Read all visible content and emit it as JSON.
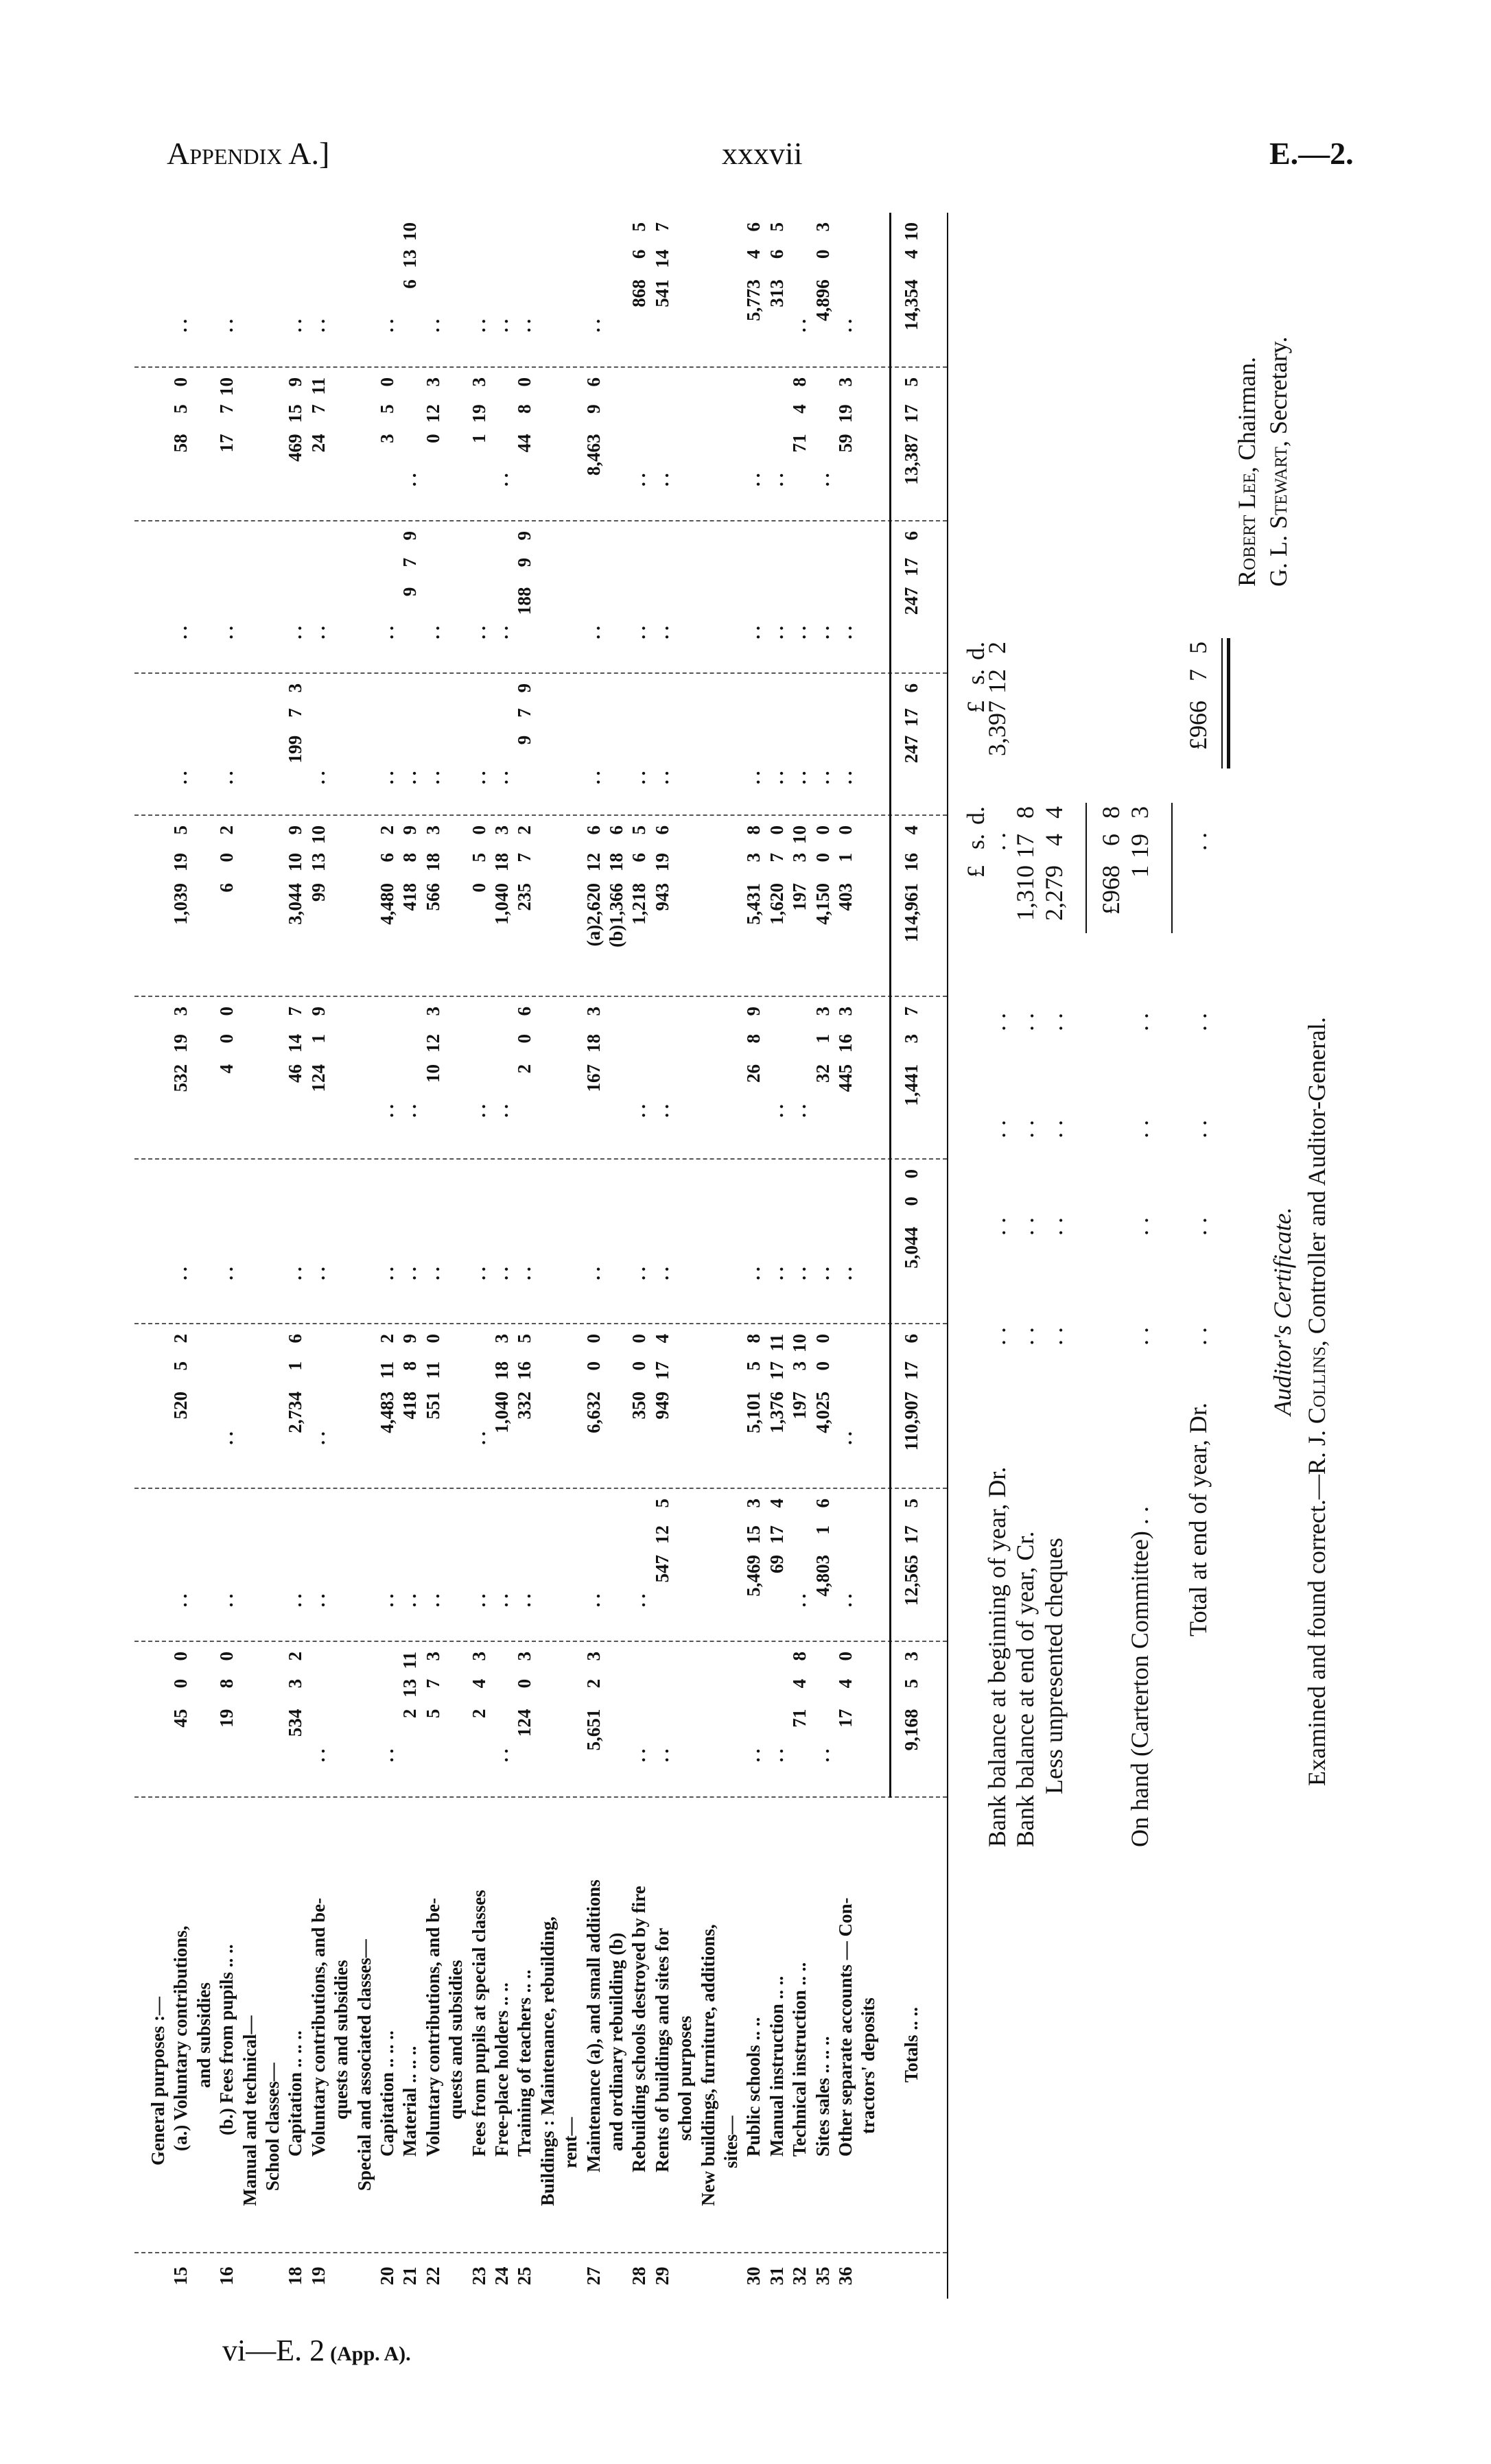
{
  "header": {
    "left": "Appendix A.]",
    "center": "xxxvii",
    "right": "E.—2."
  },
  "footer": {
    "main": "vi—E. 2",
    "sub": "(App. A)."
  },
  "table": {
    "lines": [
      {
        "no": "",
        "label": "General purposes :—",
        "values": []
      },
      {
        "no": "15",
        "label": "(a.) Voluntary contributions,",
        "values": [
          "45 0 0",
          "..",
          "520 5 2",
          "..",
          "532 19 3",
          "1,039 19 5",
          "..",
          "..",
          "58 5 0",
          ".."
        ]
      },
      {
        "no": "",
        "label": "and subsidies",
        "values": []
      },
      {
        "no": "16",
        "label": "(b.) Fees from pupils .. ..",
        "values": [
          "19 8 0",
          "..",
          "..",
          "..",
          "4 0 0",
          "6 0 2",
          "..",
          "..",
          "17 7 10",
          ".."
        ]
      },
      {
        "no": "",
        "label": "Manual and technical—",
        "values": []
      },
      {
        "no": "",
        "label": "School classes—",
        "values": []
      },
      {
        "no": "18",
        "label": "Capitation .. .. ..",
        "values": [
          "534 3 2",
          "..",
          "2,734 1 6",
          "..",
          "46 14 7",
          "3,044 10 9",
          "199 7 3",
          "..",
          "469 15 9",
          ".."
        ]
      },
      {
        "no": "19",
        "label": "Voluntary contributions, and be-",
        "values": [
          "..",
          "..",
          "..",
          "..",
          "124 1 9",
          "99 13 10",
          "..",
          "..",
          "24 7 11",
          ".."
        ]
      },
      {
        "no": "",
        "label": "quests and subsidies",
        "values": []
      },
      {
        "no": "",
        "label": "Special and associated classes—",
        "values": []
      },
      {
        "no": "20",
        "label": "Capitation .. .. ..",
        "values": [
          "..",
          "..",
          "4,483 11 2",
          "..",
          "..",
          "4,480 6 2",
          "..",
          "..",
          "3 5 0",
          ".."
        ]
      },
      {
        "no": "21",
        "label": "Material .. .. ..",
        "values": [
          "2 13 11",
          "..",
          "418 8 9",
          "..",
          "..",
          "418 8 9",
          "..",
          "9 7 9",
          "..",
          "6 13 10"
        ]
      },
      {
        "no": "22",
        "label": "Voluntary contributions, and be-",
        "values": [
          "5 7 3",
          "..",
          "551 11 0",
          "..",
          "10 12 3",
          "566 18 3",
          "..",
          "..",
          "0 12 3",
          ".."
        ]
      },
      {
        "no": "",
        "label": "quests and subsidies",
        "values": []
      },
      {
        "no": "23",
        "label": "Fees from pupils at special classes",
        "values": [
          "2 4 3",
          "..",
          "..",
          "..",
          "..",
          "0 5 0",
          "..",
          "..",
          "1 19 3",
          ".."
        ]
      },
      {
        "no": "24",
        "label": "Free-place holders .. ..",
        "values": [
          "..",
          "..",
          "1,040 18 3",
          "..",
          "..",
          "1,040 18 3",
          "..",
          "..",
          "..",
          ".."
        ]
      },
      {
        "no": "25",
        "label": "Training of teachers .. ..",
        "values": [
          "124 0 3",
          "..",
          "332 16 5",
          "..",
          "2 0 6",
          "235 7 2",
          "9 7 9",
          "188 9 9",
          "44 8 0",
          ".."
        ]
      },
      {
        "no": "",
        "label": "Buildings : Maintenance, rebuilding,",
        "values": []
      },
      {
        "no": "",
        "label": "rent—",
        "values": []
      },
      {
        "no": "27",
        "label": "Maintenance (a), and small additions",
        "values": [
          "5,651 2 3",
          "..",
          "6,632 0 0",
          "..",
          "167 18 3",
          "(a)2,620 12 6",
          "..",
          "..",
          "8,463 9 6",
          ".."
        ]
      },
      {
        "no": "",
        "label": "and ordinary rebuilding (b)",
        "values": [
          "",
          "",
          "",
          "",
          "",
          "(b)1,366 18 6",
          "",
          "",
          "",
          ""
        ]
      },
      {
        "no": "28",
        "label": "Rebuilding schools destroyed by fire",
        "values": [
          "..",
          "..",
          "350 0 0",
          "..",
          "..",
          "1,218 6 5",
          "..",
          "..",
          "..",
          "868 6 5"
        ]
      },
      {
        "no": "29",
        "label": "Rents of buildings and sites for",
        "values": [
          "..",
          "547 12 5",
          "949 17 4",
          "..",
          "..",
          "943 19 6",
          "..",
          "..",
          "..",
          "541 14 7"
        ]
      },
      {
        "no": "",
        "label": "school purposes",
        "values": []
      },
      {
        "no": "",
        "label": "New buildings, furniture, additions,",
        "values": []
      },
      {
        "no": "",
        "label": "sites—",
        "values": []
      },
      {
        "no": "30",
        "label": "Public schools .. ..",
        "values": [
          "..",
          "5,469 15 3",
          "5,101 5 8",
          "..",
          "26 8 9",
          "5,431 3 8",
          "..",
          "..",
          "..",
          "5,773 4 6"
        ]
      },
      {
        "no": "31",
        "label": "Manual instruction .. ..",
        "values": [
          "..",
          "69 17 4",
          "1,376 17 11",
          "..",
          "..",
          "1,620 7 0",
          "..",
          "..",
          "..",
          "313 6 5"
        ]
      },
      {
        "no": "32",
        "label": "Technical instruction .. ..",
        "values": [
          "71 4 8",
          "..",
          "197 3 10",
          "..",
          "..",
          "197 3 10",
          "..",
          "..",
          "71 4 8",
          ".."
        ]
      },
      {
        "no": "35",
        "label": "Sites sales .. .. ..",
        "values": [
          "..",
          "4,803 1 6",
          "4,025 0 0",
          "..",
          "32 1 3",
          "4,150 0 0",
          "..",
          "..",
          "..",
          "4,896 0 3"
        ]
      },
      {
        "no": "36",
        "label": "Other separate accounts — Con-",
        "values": [
          "17 4 0",
          "..",
          "..",
          "..",
          "445 16 3",
          "403 1 0",
          "..",
          "..",
          "59 19 3",
          ".."
        ]
      },
      {
        "no": "",
        "label": "tractors' deposits",
        "values": []
      }
    ],
    "totals": {
      "label": "Totals .. ..",
      "values": [
        "9,168 5 3",
        "12,565 17 5",
        "110,907 17 6",
        "5,044 0 0",
        "1,441 3 7",
        "114,961 16 4",
        "247 17 6",
        "247 17 6",
        "13,387 17 5",
        "14,354 4 10"
      ]
    }
  },
  "summary": {
    "col_head": {
      "p": "£",
      "s": "s.",
      "d": "d."
    },
    "leader": ". .",
    "bank_begin": {
      "label": "Bank balance at beginning of year, Dr.",
      "value": "3,397 12 2"
    },
    "bank_end": {
      "label": "Bank balance at end of year, Cr.",
      "value": "1,310 17 8"
    },
    "unpresented": {
      "label": "Less unpresented cheques",
      "value": "2,279 4 4"
    },
    "subtotal": {
      "value": "£968 6 8"
    },
    "on_hand": {
      "label": "On hand (Carterton Committee) . .",
      "value": "1 19 3"
    },
    "total_end": {
      "label": "Total at end of year, Dr.",
      "value": "£966 7 5"
    }
  },
  "signatures": [
    {
      "name": "Robert Lee",
      "role": ", Chairman."
    },
    {
      "name": "G. L. Stewart",
      "role": ", Secretary."
    }
  ],
  "auditor": {
    "title": "Auditor's Certificate.",
    "text_before": "Examined and found correct.—R. J. ",
    "name": "Collins",
    "text_after": ", Controller and Auditor-General."
  }
}
